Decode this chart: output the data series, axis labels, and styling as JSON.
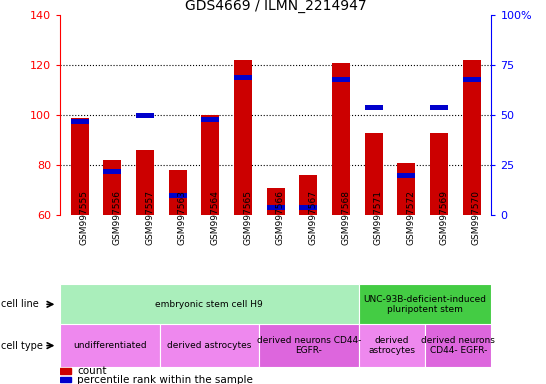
{
  "title": "GDS4669 / ILMN_2214947",
  "samples": [
    "GSM997555",
    "GSM997556",
    "GSM997557",
    "GSM997563",
    "GSM997564",
    "GSM997565",
    "GSM997566",
    "GSM997567",
    "GSM997568",
    "GSM997571",
    "GSM997572",
    "GSM997569",
    "GSM997570"
  ],
  "count_values": [
    99,
    82,
    86,
    78,
    100,
    122,
    71,
    76,
    121,
    93,
    81,
    93,
    122
  ],
  "percentile_values": [
    47,
    22,
    50,
    10,
    48,
    69,
    4,
    4,
    68,
    54,
    20,
    54,
    68
  ],
  "ylim_left": [
    60,
    140
  ],
  "ylim_right": [
    0,
    100
  ],
  "yticks_left": [
    60,
    80,
    100,
    120,
    140
  ],
  "yticks_right": [
    0,
    25,
    50,
    75,
    100
  ],
  "ytick_labels_right": [
    "0",
    "25",
    "50",
    "75",
    "100%"
  ],
  "bar_color_red": "#cc0000",
  "bar_color_blue": "#0000cc",
  "bar_width": 0.55,
  "cell_line_groups": [
    {
      "label": "embryonic stem cell H9",
      "start": 0,
      "end": 9,
      "color": "#aaeebb"
    },
    {
      "label": "UNC-93B-deficient-induced\npluripotent stem",
      "start": 9,
      "end": 13,
      "color": "#44cc44"
    }
  ],
  "cell_type_groups": [
    {
      "label": "undifferentiated",
      "start": 0,
      "end": 3,
      "color": "#ee88ee"
    },
    {
      "label": "derived astrocytes",
      "start": 3,
      "end": 6,
      "color": "#ee88ee"
    },
    {
      "label": "derived neurons CD44-\nEGFR-",
      "start": 6,
      "end": 9,
      "color": "#dd66dd"
    },
    {
      "label": "derived\nastrocytes",
      "start": 9,
      "end": 11,
      "color": "#ee88ee"
    },
    {
      "label": "derived neurons\nCD44- EGFR-",
      "start": 11,
      "end": 13,
      "color": "#dd66dd"
    }
  ],
  "bg_color": "#ffffff",
  "tick_area_color": "#c8c8c8"
}
